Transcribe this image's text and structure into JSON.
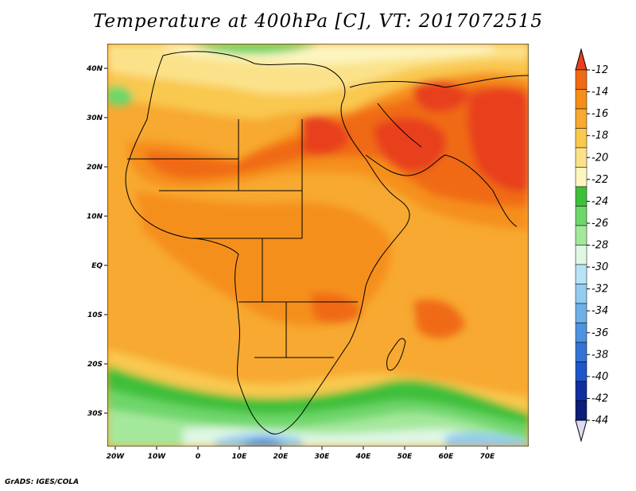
{
  "title": "Temperature at 400hPa [C], VT: 2017072515",
  "footer": "GrADS: IGES/COLA",
  "map": {
    "lon_range": [
      -23,
      80
    ],
    "lat_range": [
      -37,
      45
    ],
    "x_ticks": [
      "20W",
      "10W",
      "0",
      "10E",
      "20E",
      "30E",
      "40E",
      "50E",
      "60E",
      "70E"
    ],
    "y_ticks": [
      "40N",
      "30N",
      "20N",
      "10N",
      "EQ",
      "10S",
      "20S",
      "30S"
    ],
    "background_level": "-16 to -14"
  },
  "colorbar": {
    "unit": "C",
    "labels": [
      "-12",
      "-14",
      "-16",
      "-18",
      "-20",
      "-22",
      "-24",
      "-26",
      "-28",
      "-30",
      "-32",
      "-34",
      "-36",
      "-38",
      "-40",
      "-42",
      "-44"
    ],
    "colors": [
      "#e8401a",
      "#f06a14",
      "#f58f1a",
      "#f7a931",
      "#f9c84f",
      "#fbe28a",
      "#fdf5c0",
      "#3fbf3a",
      "#6ed66a",
      "#a4e89c",
      "#dff7e4",
      "#b7e3f5",
      "#93ccef",
      "#6fb1e6",
      "#4f92dd",
      "#3472d4",
      "#1f55c8",
      "#102f9c",
      "#0b1e78",
      "#dcdcf5"
    ]
  }
}
